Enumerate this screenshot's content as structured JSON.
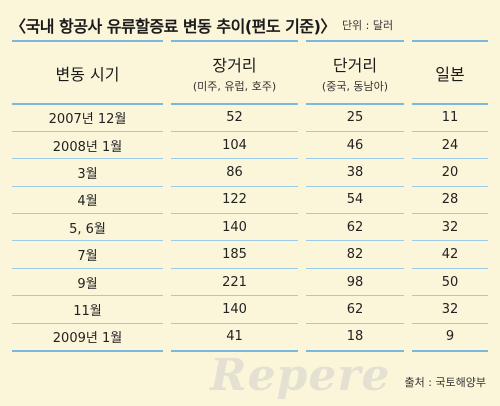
{
  "title": "〈국내 항공사 유류할증료 변동 추이(편도 기준)〉",
  "unit": "단위 : 달러",
  "source": "출처 : 국토해양부",
  "watermark": "Repere",
  "chart_data": {
    "type": "table",
    "headers": [
      {
        "label": "변동 시기",
        "sub": ""
      },
      {
        "label": "장거리",
        "sub": "(미주, 유럽, 호주)"
      },
      {
        "label": "단거리",
        "sub": "(중국, 동남아)"
      },
      {
        "label": "일본",
        "sub": ""
      }
    ],
    "rows": [
      [
        "2007년 12월",
        "52",
        "25",
        "11"
      ],
      [
        "2008년  1월",
        "104",
        "46",
        "24"
      ],
      [
        "3월",
        "86",
        "38",
        "20"
      ],
      [
        "4월",
        "122",
        "54",
        "28"
      ],
      [
        "5, 6월",
        "140",
        "62",
        "32"
      ],
      [
        "7월",
        "185",
        "82",
        "42"
      ],
      [
        "9월",
        "221",
        "98",
        "50"
      ],
      [
        "11월",
        "140",
        "62",
        "32"
      ],
      [
        "2009년 1월",
        "41",
        "18",
        "9"
      ]
    ]
  }
}
